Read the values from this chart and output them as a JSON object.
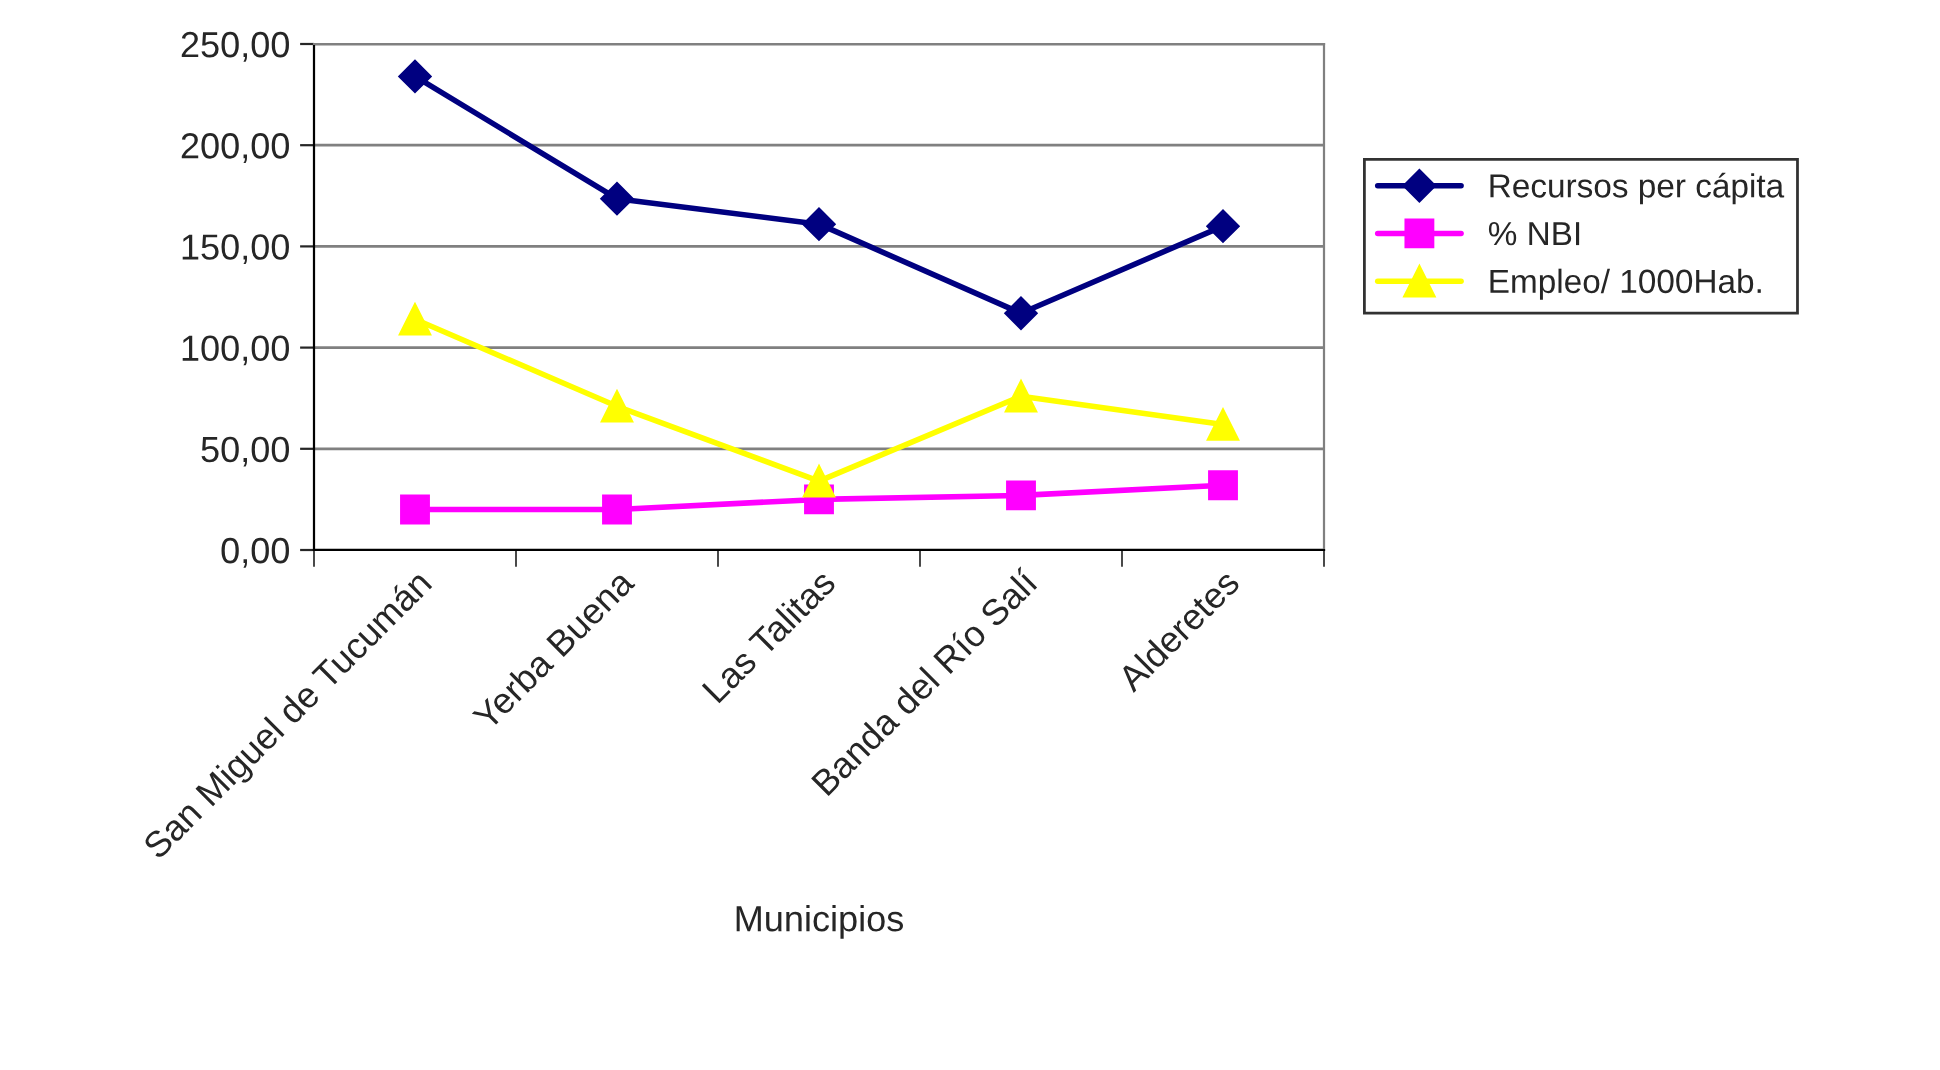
{
  "chart_data": {
    "type": "line",
    "xlabel": "Municipios",
    "categories": [
      "San Miguel de Tucumán",
      "Yerba Buena",
      "Las Talitas",
      "Banda del Río Salí",
      "Alderetes"
    ],
    "series": [
      {
        "name": "Recursos per cápita",
        "color": "#000080",
        "marker": "diamond",
        "values": [
          234,
          173.6,
          161,
          117,
          160
        ]
      },
      {
        "name": "% NBI",
        "color": "#ff00ff",
        "marker": "square",
        "values": [
          20,
          20,
          25,
          27,
          32
        ]
      },
      {
        "name": "Empleo/ 1000Hab.",
        "color": "#ffff00",
        "marker": "triangle",
        "values": [
          114,
          71,
          34,
          76,
          62
        ]
      }
    ],
    "ylim": [
      0,
      250
    ],
    "yticks": [
      {
        "value": 0,
        "label": "0,00"
      },
      {
        "value": 50,
        "label": "50,00"
      },
      {
        "value": 100,
        "label": "100,00"
      },
      {
        "value": 150,
        "label": "150,00"
      },
      {
        "value": 200,
        "label": "200,00"
      },
      {
        "value": 250,
        "label": "250,00"
      }
    ],
    "grid": "y",
    "legend": "right",
    "line_style": "solid"
  }
}
